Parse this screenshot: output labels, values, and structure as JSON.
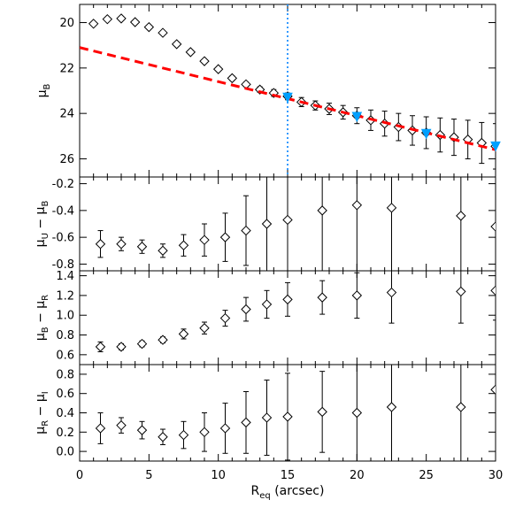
{
  "chart_data": [
    {
      "type": "scatter",
      "ylabel": {
        "base": "μ",
        "sub": "B"
      },
      "xlim": [
        0,
        30
      ],
      "ylim": [
        26.8,
        19.2
      ],
      "y_inverted": true,
      "yticks": [
        20,
        22,
        24,
        26
      ],
      "series": [
        {
          "marker": "diamond",
          "x": [
            1.0,
            2.0,
            3.0,
            4.0,
            5.0,
            6.0,
            7.0,
            8.0,
            9.0,
            10.0,
            11.0,
            12.0,
            13.0,
            14.0,
            15.0,
            16.0,
            17.0,
            18.0,
            19.0,
            20.0,
            21.0,
            22.0,
            23.0,
            24.0,
            25.0,
            26.0,
            27.0,
            28.0,
            29.0,
            30.0
          ],
          "y": [
            20.05,
            19.85,
            19.82,
            19.98,
            20.2,
            20.45,
            20.95,
            21.3,
            21.7,
            22.05,
            22.45,
            22.72,
            22.95,
            23.1,
            23.25,
            23.5,
            23.65,
            23.8,
            23.95,
            24.1,
            24.3,
            24.45,
            24.6,
            24.75,
            24.85,
            24.95,
            25.05,
            25.15,
            25.3,
            25.45
          ],
          "yerr": [
            0.0,
            0.0,
            0.0,
            0.0,
            0.0,
            0.0,
            0.0,
            0.0,
            0.0,
            0.05,
            0.1,
            0.1,
            0.12,
            0.15,
            0.15,
            0.2,
            0.2,
            0.25,
            0.3,
            0.35,
            0.45,
            0.55,
            0.6,
            0.65,
            0.7,
            0.75,
            0.8,
            0.85,
            0.9,
            1.0
          ]
        },
        {
          "style": "dashed",
          "color": "#ff0000",
          "x": [
            0,
            30
          ],
          "y": [
            21.1,
            25.6
          ]
        },
        {
          "marker": "triangle-down",
          "color": "#00a0ff",
          "x": [
            15,
            20,
            25,
            30
          ],
          "y": [
            23.3,
            24.15,
            24.9,
            25.45
          ]
        }
      ],
      "vline": {
        "x": 15,
        "color": "#1e90ff",
        "style": "dotted"
      }
    },
    {
      "type": "scatter",
      "ylabel": {
        "a": "μ",
        "a_sub": "U",
        "b": "μ",
        "b_sub": "B"
      },
      "xlim": [
        0,
        30
      ],
      "ylim": [
        -0.85,
        -0.15
      ],
      "yticks": [
        -0.8,
        -0.6,
        -0.4,
        -0.2
      ],
      "series": [
        {
          "marker": "diamond",
          "x": [
            1.5,
            3.0,
            4.5,
            6.0,
            7.5,
            9.0,
            10.5,
            12.0,
            13.5,
            15.0,
            17.5,
            20.0,
            22.5,
            27.5,
            30.0
          ],
          "y": [
            -0.65,
            -0.65,
            -0.67,
            -0.7,
            -0.66,
            -0.62,
            -0.6,
            -0.55,
            -0.5,
            -0.47,
            -0.4,
            -0.36,
            -0.38,
            -0.44,
            -0.52
          ],
          "yerr": [
            0.1,
            0.05,
            0.05,
            0.05,
            0.08,
            0.12,
            0.18,
            0.26,
            0.35,
            0.45,
            0.5,
            0.6,
            0.6,
            0.65,
            0.7
          ]
        }
      ]
    },
    {
      "type": "scatter",
      "ylabel": {
        "a": "μ",
        "a_sub": "B",
        "b": "μ",
        "b_sub": "R"
      },
      "xlim": [
        0,
        30
      ],
      "ylim": [
        0.5,
        1.45
      ],
      "yticks": [
        0.6,
        0.8,
        1.0,
        1.2,
        1.4
      ],
      "series": [
        {
          "marker": "diamond",
          "x": [
            1.5,
            3.0,
            4.5,
            6.0,
            7.5,
            9.0,
            10.5,
            12.0,
            13.5,
            15.0,
            17.5,
            20.0,
            22.5,
            27.5,
            30.0
          ],
          "y": [
            0.68,
            0.68,
            0.71,
            0.75,
            0.81,
            0.87,
            0.97,
            1.06,
            1.11,
            1.16,
            1.18,
            1.2,
            1.23,
            1.24,
            1.25
          ],
          "yerr": [
            0.05,
            0.03,
            0.03,
            0.03,
            0.05,
            0.06,
            0.08,
            0.12,
            0.14,
            0.17,
            0.17,
            0.23,
            0.31,
            0.32,
            0.3
          ]
        }
      ]
    },
    {
      "type": "scatter",
      "xlabel": {
        "base": "R",
        "sub": "eq",
        "unit": "(arcsec)"
      },
      "xlim": [
        0,
        30
      ],
      "xticks": [
        0,
        5,
        10,
        15,
        20,
        25,
        30
      ],
      "ylim": [
        -0.1,
        0.9
      ],
      "yticks": [
        0.0,
        0.2,
        0.4,
        0.6,
        0.8
      ],
      "ylabel": {
        "a": "μ",
        "a_sub": "R",
        "b": "μ",
        "b_sub": "I"
      },
      "series": [
        {
          "marker": "diamond",
          "x": [
            1.5,
            3.0,
            4.5,
            6.0,
            7.5,
            9.0,
            10.5,
            12.0,
            13.5,
            15.0,
            17.5,
            20.0,
            22.5,
            27.5,
            30.0
          ],
          "y": [
            0.24,
            0.27,
            0.22,
            0.15,
            0.17,
            0.2,
            0.24,
            0.3,
            0.35,
            0.36,
            0.41,
            0.4,
            0.46,
            0.46,
            0.64
          ],
          "yerr": [
            0.16,
            0.08,
            0.09,
            0.08,
            0.14,
            0.2,
            0.26,
            0.32,
            0.39,
            0.45,
            0.42,
            0.6,
            0.7,
            0.8,
            0.8
          ]
        }
      ]
    }
  ]
}
